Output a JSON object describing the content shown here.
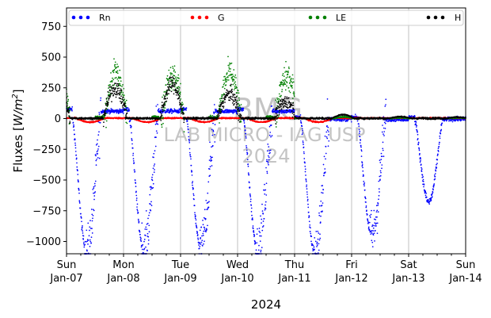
{
  "chart_data": {
    "type": "scatter",
    "xlabel": "2024",
    "ylabel": "Fluxes [W/m²]",
    "ylabel_base": "Fluxes [",
    "ylabel_unit": "W/m",
    "ylabel_sup": "2",
    "ylabel_end": "]",
    "ylim": [
      -1100,
      900
    ],
    "yticks": [
      750,
      500,
      250,
      0,
      -250,
      -500,
      -750,
      -1000
    ],
    "ytick_labels": [
      "750",
      "500",
      "250",
      "0",
      "−250",
      "−500",
      "−750",
      "−1000"
    ],
    "xlim": [
      0,
      7
    ],
    "xticks": [
      {
        "day": "Sun",
        "date": "Jan-07"
      },
      {
        "day": "Mon",
        "date": "Jan-08"
      },
      {
        "day": "Tue",
        "date": "Jan-09"
      },
      {
        "day": "Wed",
        "date": "Jan-10"
      },
      {
        "day": "Thu",
        "date": "Jan-11"
      },
      {
        "day": "Fri",
        "date": "Jan-12"
      },
      {
        "day": "Sat",
        "date": "Jan-13"
      },
      {
        "day": "Sun",
        "date": "Jan-14"
      }
    ],
    "grid": "vertical at day boundaries",
    "legend_placement": "top, single row",
    "series": [
      {
        "name": "Rn",
        "color": "#0000ff",
        "daily_min": [
          -1080,
          -1060,
          -1040,
          -1070,
          -1090,
          -950,
          -680
        ]
      },
      {
        "name": "G",
        "color": "#ff0000",
        "range": [
          -40,
          10
        ]
      },
      {
        "name": "LE",
        "color": "#008000",
        "daily_max": [
          530,
          520,
          520,
          480,
          20,
          10,
          10
        ]
      },
      {
        "name": "H",
        "color": "#000000",
        "daily_max": [
          310,
          350,
          250,
          170,
          40,
          20,
          15
        ]
      }
    ],
    "watermark": [
      "BMG",
      "LAB MICRO - IAG USP",
      "2024"
    ]
  }
}
